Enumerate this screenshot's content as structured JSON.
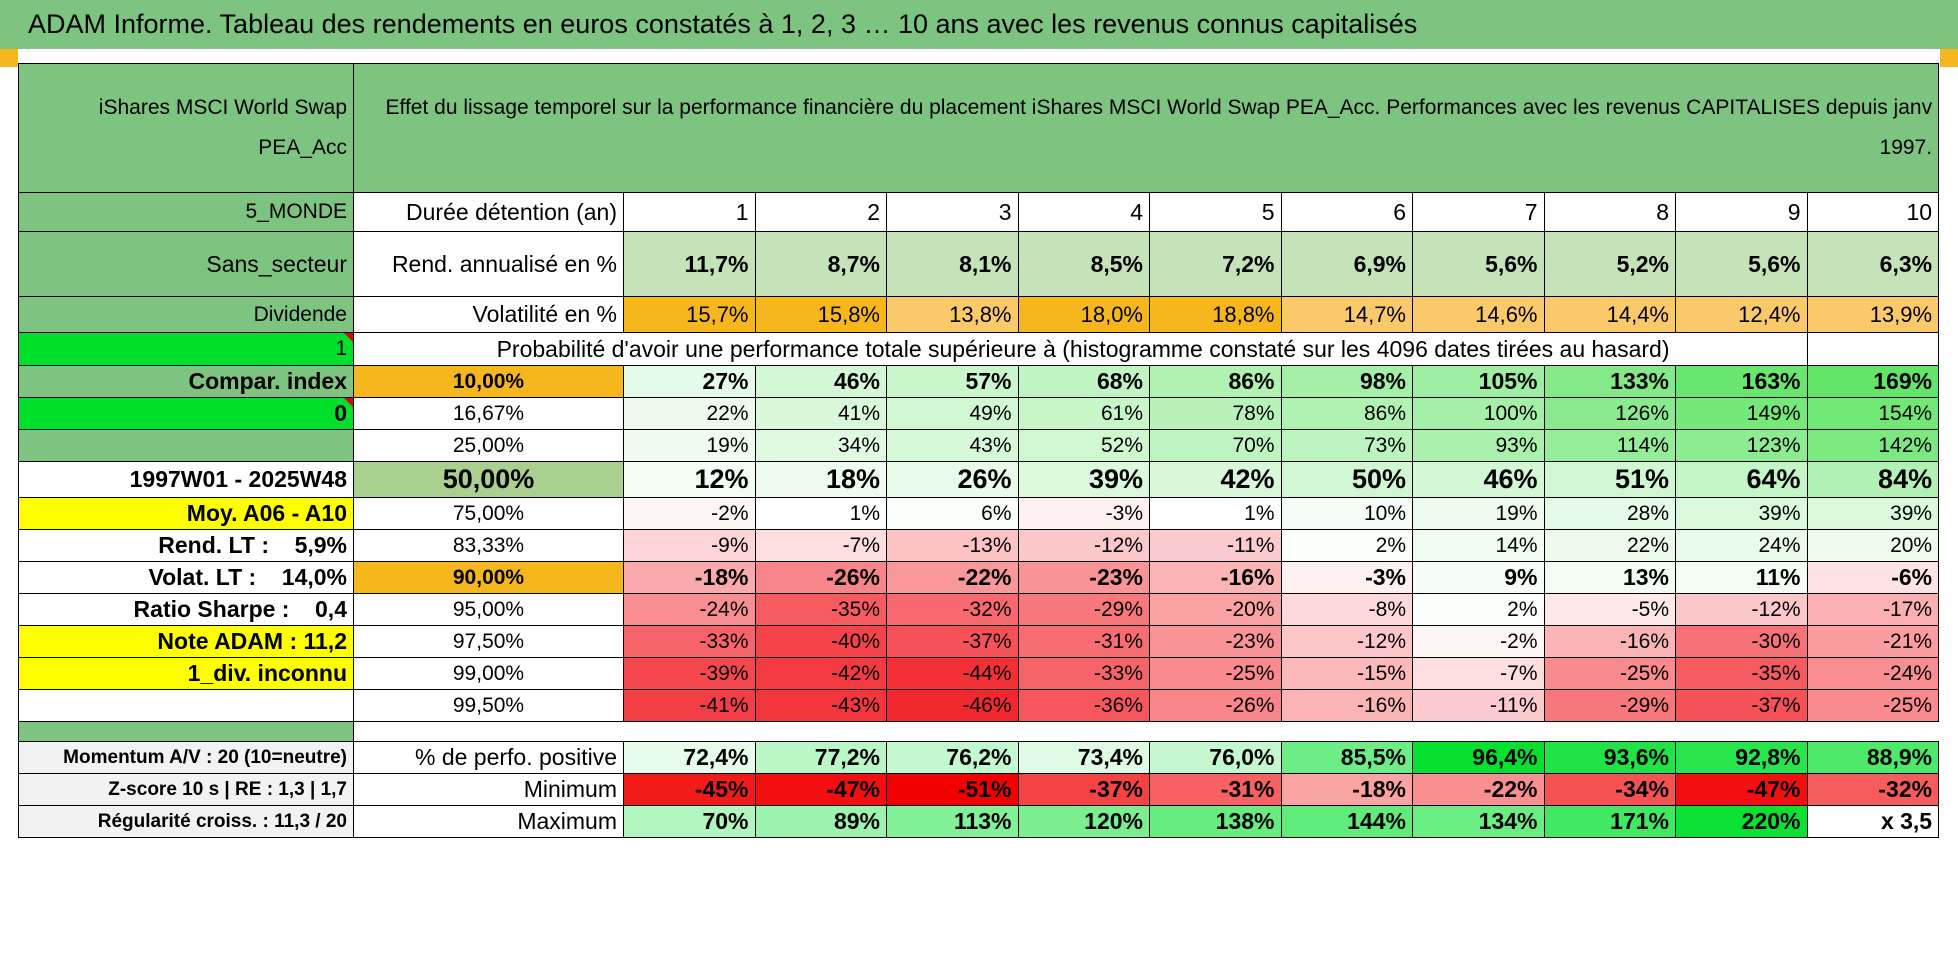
{
  "title": "ADAM Informe. Tableau des rendements en euros constatés à 1, 2, 3 … 10 ans avec les revenus connus capitalisés",
  "colors": {
    "header_green": "#7cc47f",
    "bright_green": "#00e02a",
    "orange": "#f6b71e",
    "yellow": "#ffff00",
    "red_text": "#e3000f"
  },
  "fund": {
    "name": "iShares MSCI World Swap PEA_Acc",
    "description": "Effet du lissage temporel sur la performance financière du placement iShares MSCI World Swap PEA_Acc. Performances avec les revenus CAPITALISES depuis janv 1997."
  },
  "sidebar": {
    "zone": "5_MONDE",
    "sector": "Sans_secteur",
    "dividend_label": "Dividende",
    "dividend_value": "1",
    "compar_index_label": "Compar. index",
    "compar_index_value": "0",
    "period": "1997W01 - 2025W48",
    "moy": "Moy. A06 - A10",
    "rend_lt": "Rend. LT :    5,9%",
    "volat_lt": "Volat. LT :    14,0%",
    "sharpe": "Ratio Sharpe :    0,4",
    "note": "Note ADAM : 11,2",
    "div_status": "1_div. inconnu",
    "momentum": "Momentum A/V : 20 (10=neutre)",
    "zscore": "Z-score 10 s | RE : 1,3  | 1,7",
    "regularite": "Régularité croiss. : 11,3 / 20"
  },
  "table": {
    "duration_label": "Durée détention (an)",
    "years": [
      "1",
      "2",
      "3",
      "4",
      "5",
      "6",
      "7",
      "8",
      "9",
      "10"
    ],
    "rend_label": "Rend. annualisé en %",
    "rend": [
      "11,7%",
      "8,7%",
      "8,1%",
      "8,5%",
      "7,2%",
      "6,9%",
      "5,6%",
      "5,2%",
      "5,6%",
      "6,3%"
    ],
    "vol_label": "Volatilité en %",
    "vol": [
      "15,7%",
      "15,8%",
      "13,8%",
      "18,0%",
      "18,8%",
      "14,7%",
      "14,6%",
      "14,4%",
      "12,4%",
      "13,9%"
    ],
    "prob_label": "Probabilité d'avoir une performance totale supérieure à (histogramme constaté sur les 4096 dates tirées au hasard)",
    "prob_rows": [
      {
        "p": "10,00%",
        "v": [
          "27%",
          "46%",
          "57%",
          "68%",
          "86%",
          "98%",
          "105%",
          "133%",
          "163%",
          "169%"
        ]
      },
      {
        "p": "16,67%",
        "v": [
          "22%",
          "41%",
          "49%",
          "61%",
          "78%",
          "86%",
          "100%",
          "126%",
          "149%",
          "154%"
        ]
      },
      {
        "p": "25,00%",
        "v": [
          "19%",
          "34%",
          "43%",
          "52%",
          "70%",
          "73%",
          "93%",
          "114%",
          "123%",
          "142%"
        ]
      },
      {
        "p": "50,00%",
        "v": [
          "12%",
          "18%",
          "26%",
          "39%",
          "42%",
          "50%",
          "46%",
          "51%",
          "64%",
          "84%"
        ]
      },
      {
        "p": "75,00%",
        "v": [
          "-2%",
          "1%",
          "6%",
          "-3%",
          "1%",
          "10%",
          "19%",
          "28%",
          "39%",
          "39%"
        ]
      },
      {
        "p": "83,33%",
        "v": [
          "-9%",
          "-7%",
          "-13%",
          "-12%",
          "-11%",
          "2%",
          "14%",
          "22%",
          "24%",
          "20%"
        ]
      },
      {
        "p": "90,00%",
        "v": [
          "-18%",
          "-26%",
          "-22%",
          "-23%",
          "-16%",
          "-3%",
          "9%",
          "13%",
          "11%",
          "-6%"
        ]
      },
      {
        "p": "95,00%",
        "v": [
          "-24%",
          "-35%",
          "-32%",
          "-29%",
          "-20%",
          "-8%",
          "2%",
          "-5%",
          "-12%",
          "-17%"
        ]
      },
      {
        "p": "97,50%",
        "v": [
          "-33%",
          "-40%",
          "-37%",
          "-31%",
          "-23%",
          "-12%",
          "-2%",
          "-16%",
          "-30%",
          "-21%"
        ]
      },
      {
        "p": "99,00%",
        "v": [
          "-39%",
          "-42%",
          "-44%",
          "-33%",
          "-25%",
          "-15%",
          "-7%",
          "-25%",
          "-35%",
          "-24%"
        ]
      },
      {
        "p": "99,50%",
        "v": [
          "-41%",
          "-43%",
          "-46%",
          "-36%",
          "-26%",
          "-16%",
          "-11%",
          "-29%",
          "-37%",
          "-25%"
        ]
      }
    ],
    "pos_label": "% de perfo. positive",
    "pos": [
      "72,4%",
      "77,2%",
      "76,2%",
      "73,4%",
      "76,0%",
      "85,5%",
      "96,4%",
      "93,6%",
      "92,8%",
      "88,9%"
    ],
    "min_label": "Minimum",
    "min": [
      "-45%",
      "-47%",
      "-51%",
      "-37%",
      "-31%",
      "-18%",
      "-22%",
      "-34%",
      "-47%",
      "-32%"
    ],
    "max_label": "Maximum",
    "max": [
      "70%",
      "89%",
      "113%",
      "120%",
      "138%",
      "144%",
      "134%",
      "171%",
      "220%",
      "x 3,5"
    ]
  }
}
